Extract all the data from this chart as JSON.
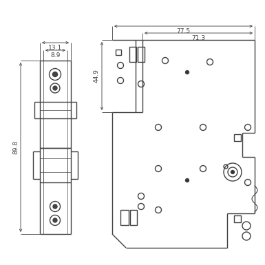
{
  "bg_color": "#ffffff",
  "line_color": "#404040",
  "dim_color": "#404040",
  "dim_text_13_1": "13.1",
  "dim_text_8_9": "8.9",
  "dim_text_89_8": "89.8",
  "dim_text_44_9": "44.9",
  "dim_text_77_5": "77.5",
  "dim_text_71_3": "71.3",
  "font_size": 6.5,
  "lw_main": 1.0,
  "lw_dim": 0.6,
  "lw_thin": 0.5
}
